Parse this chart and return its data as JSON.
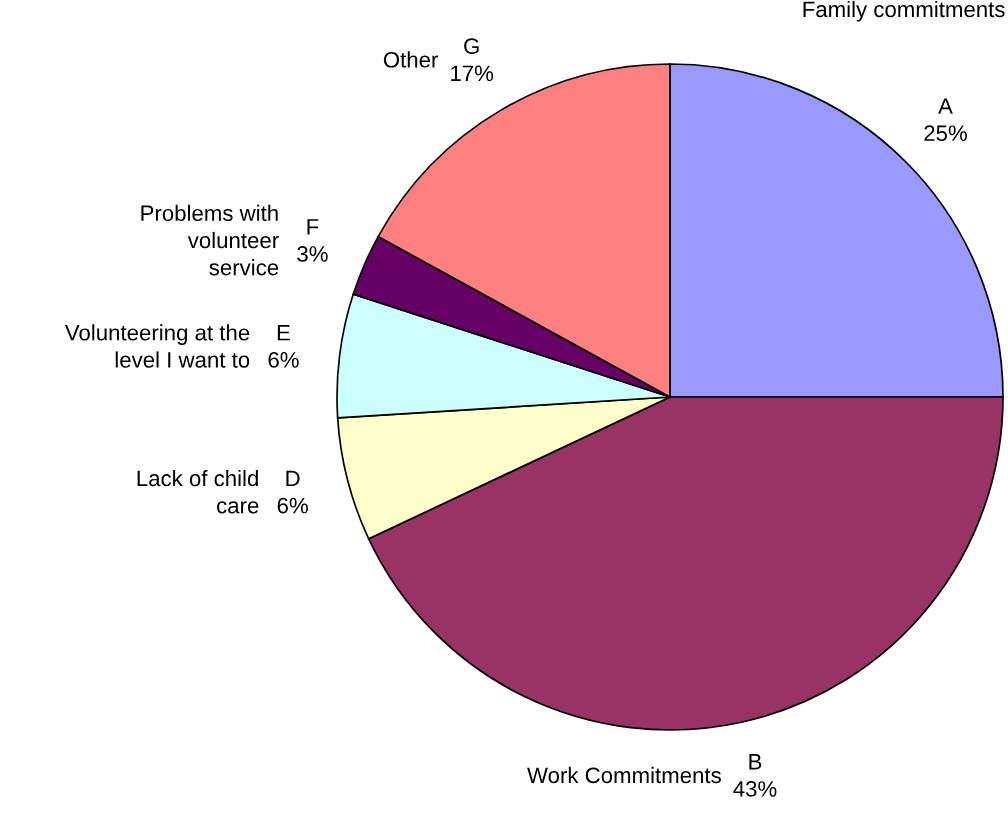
{
  "chart_data": {
    "type": "pie",
    "categories": [
      "A",
      "B",
      "D",
      "E",
      "F",
      "G"
    ],
    "values": [
      25,
      43,
      6,
      6,
      3,
      17
    ],
    "value_labels": [
      "25%",
      "43%",
      "6%",
      "6%",
      "3%",
      "17%"
    ],
    "colors": [
      "#9999ff",
      "#993366",
      "#ffffcc",
      "#ccffff",
      "#660066",
      "#ff8080"
    ],
    "annotations": [
      {
        "text": "Family commitments",
        "x": "A"
      },
      {
        "text": "Work Commitments",
        "x": "B"
      },
      {
        "text": "Lack of child\ncare",
        "x": "D"
      },
      {
        "text": "Volunteering at the\nlevel I want to",
        "x": "E"
      },
      {
        "text": "Problems with\nvolunteer\nservice",
        "x": "F"
      },
      {
        "text": "Other",
        "x": "G"
      }
    ],
    "legend": false
  }
}
